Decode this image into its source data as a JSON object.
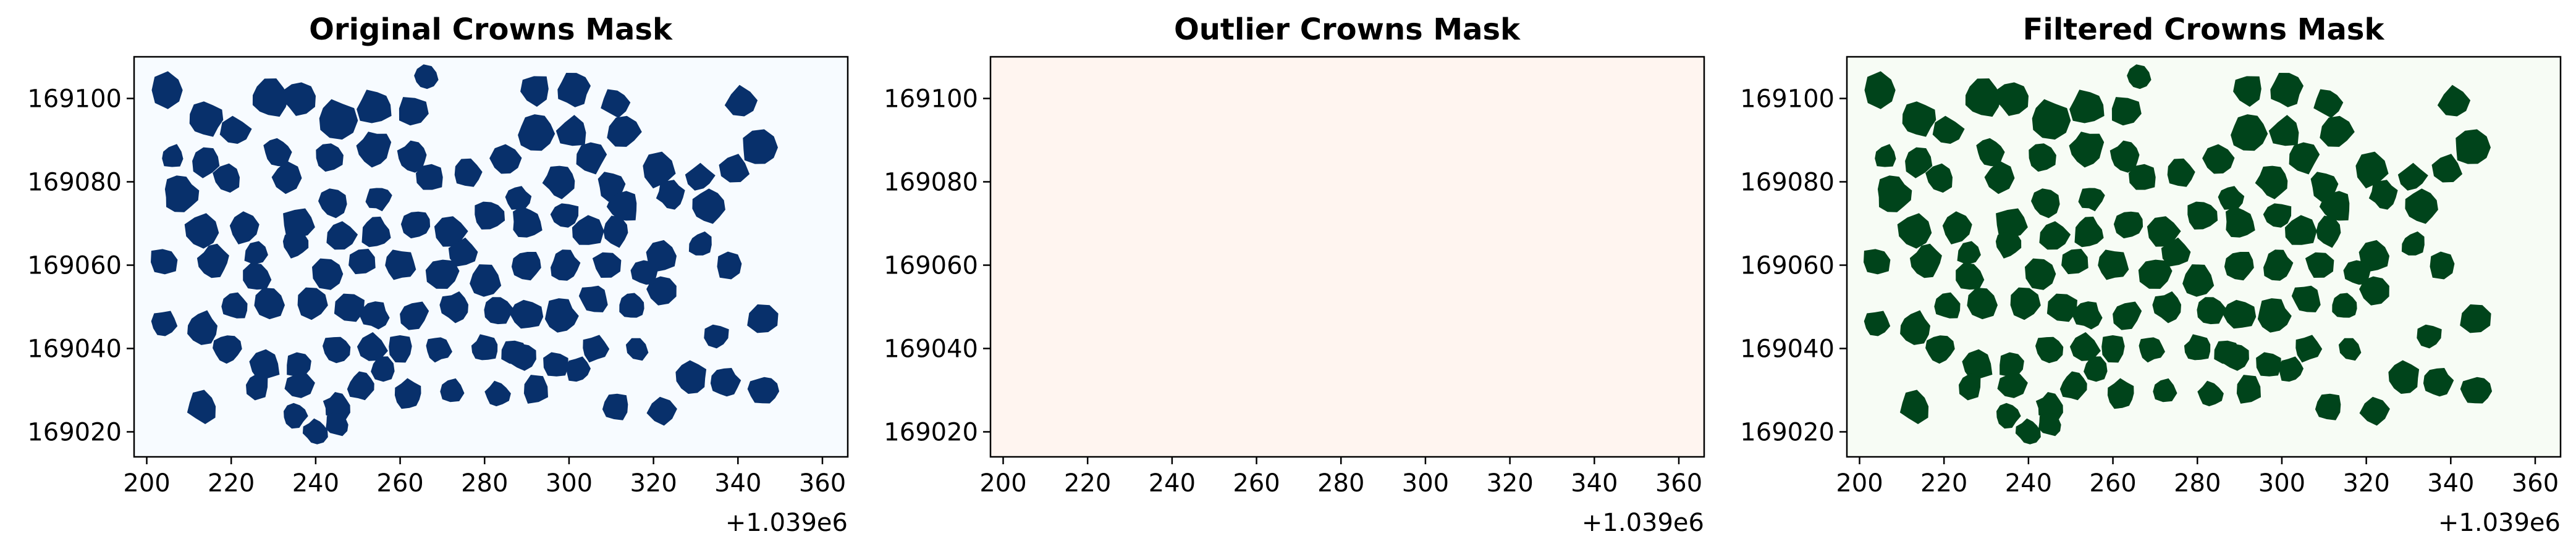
{
  "chart_data": [
    {
      "type": "map",
      "title": "Original Crowns Mask",
      "background": "#f7fbff",
      "crown_color": "#08306b",
      "xlim": [
        197,
        366
      ],
      "ylim": [
        169014,
        169110
      ],
      "x_offset_label": "+1.039e6",
      "xticks": [
        200,
        220,
        240,
        260,
        280,
        300,
        320,
        340,
        360
      ],
      "yticks": [
        169020,
        169040,
        169060,
        169080,
        169100
      ],
      "crown_count": 120
    },
    {
      "type": "map",
      "title": "Outlier Crowns Mask",
      "background": "#fff5f0",
      "crown_color": "#67000d",
      "xlim": [
        197,
        366
      ],
      "ylim": [
        169014,
        169110
      ],
      "x_offset_label": "+1.039e6",
      "xticks": [
        200,
        220,
        240,
        260,
        280,
        300,
        320,
        340,
        360
      ],
      "yticks": [
        169020,
        169040,
        169060,
        169080,
        169100
      ],
      "crown_count": 0
    },
    {
      "type": "map",
      "title": "Filtered Crowns Mask",
      "background": "#f7fcf5",
      "crown_color": "#00441b",
      "xlim": [
        197,
        366
      ],
      "ylim": [
        169014,
        169110
      ],
      "x_offset_label": "+1.039e6",
      "xticks": [
        200,
        220,
        240,
        260,
        280,
        300,
        320,
        340,
        360
      ],
      "yticks": [
        169020,
        169040,
        169060,
        169080,
        169100
      ],
      "crown_count": 120
    }
  ],
  "crowns": [
    [
      205,
      169102,
      4.5
    ],
    [
      214,
      169095,
      4.2
    ],
    [
      221,
      169092,
      3.6
    ],
    [
      229,
      169100,
      4.8
    ],
    [
      236,
      169100,
      4
    ],
    [
      245,
      169095,
      4.6
    ],
    [
      254,
      169098,
      4.4
    ],
    [
      263,
      169097,
      4
    ],
    [
      266,
      169105,
      3
    ],
    [
      292,
      169102,
      4
    ],
    [
      301,
      169102,
      4.1
    ],
    [
      311,
      169099,
      3.5
    ],
    [
      301,
      169092,
      3.8
    ],
    [
      305,
      169086,
      4
    ],
    [
      313,
      169092,
      3.9
    ],
    [
      206,
      169086,
      3
    ],
    [
      214,
      169085,
      3.8
    ],
    [
      208,
      169077,
      4.5
    ],
    [
      219,
      169081,
      3.5
    ],
    [
      233,
      169081,
      3.7
    ],
    [
      231,
      169087,
      3.5
    ],
    [
      243,
      169086,
      3.6
    ],
    [
      254,
      169088,
      4.2
    ],
    [
      263,
      169086,
      3.8
    ],
    [
      267,
      169081,
      3.5
    ],
    [
      276,
      169082,
      3.8
    ],
    [
      285,
      169085,
      3.7
    ],
    [
      292,
      169092,
      4.5
    ],
    [
      298,
      169080,
      4
    ],
    [
      310,
      169079,
      3.5
    ],
    [
      321,
      169083,
      4.4
    ],
    [
      331,
      169081,
      3.4
    ],
    [
      339,
      169083,
      3.9
    ],
    [
      345,
      169088,
      4.5
    ],
    [
      341,
      169099,
      4
    ],
    [
      324,
      169077,
      3.5
    ],
    [
      333,
      169074,
      4.3
    ],
    [
      313,
      169074,
      3.9
    ],
    [
      304,
      169068,
      4
    ],
    [
      311,
      169068,
      3.6
    ],
    [
      204,
      169061,
      3.6
    ],
    [
      213,
      169068,
      4.2
    ],
    [
      223,
      169069,
      3.8
    ],
    [
      226,
      169063,
      3.2
    ],
    [
      236,
      169070,
      4.2
    ],
    [
      246,
      169067,
      3.7
    ],
    [
      254,
      169068,
      3.8
    ],
    [
      264,
      169070,
      3.6
    ],
    [
      272,
      169068,
      4.1
    ],
    [
      281,
      169072,
      3.8
    ],
    [
      290,
      169070,
      4
    ],
    [
      299,
      169072,
      3.5
    ],
    [
      216,
      169061,
      3.8
    ],
    [
      226,
      169057,
      3.6
    ],
    [
      235,
      169065,
      3.2
    ],
    [
      243,
      169058,
      3.8
    ],
    [
      251,
      169061,
      3.4
    ],
    [
      260,
      169060,
      3.8
    ],
    [
      270,
      169058,
      3.8
    ],
    [
      280,
      169056,
      4
    ],
    [
      290,
      169060,
      3.6
    ],
    [
      299,
      169060,
      3.7
    ],
    [
      309,
      169060,
      3.5
    ],
    [
      322,
      169062,
      3.8
    ],
    [
      338,
      169060,
      3.7
    ],
    [
      204,
      169046,
      3.2
    ],
    [
      213,
      169045,
      4
    ],
    [
      221,
      169050,
      3.2
    ],
    [
      229,
      169051,
      4
    ],
    [
      239,
      169051,
      3.8
    ],
    [
      248,
      169050,
      3.6
    ],
    [
      254,
      169048,
      3.4
    ],
    [
      263,
      169048,
      3.6
    ],
    [
      273,
      169050,
      3.6
    ],
    [
      283,
      169049,
      3.8
    ],
    [
      290,
      169048,
      3.8
    ],
    [
      298,
      169048,
      4
    ],
    [
      306,
      169052,
      3.6
    ],
    [
      315,
      169050,
      3.2
    ],
    [
      322,
      169054,
      3.4
    ],
    [
      219,
      169040,
      3.4
    ],
    [
      228,
      169036,
      3.8
    ],
    [
      236,
      169036,
      3.4
    ],
    [
      245,
      169040,
      3.4
    ],
    [
      253,
      169040,
      3.8
    ],
    [
      260,
      169040,
      3.3
    ],
    [
      269,
      169040,
      3.2
    ],
    [
      280,
      169040,
      3.3
    ],
    [
      289,
      169038,
      3.5
    ],
    [
      297,
      169036,
      3.3
    ],
    [
      306,
      169040,
      3.3
    ],
    [
      213,
      169026,
      3.8
    ],
    [
      226,
      169031,
      3.2
    ],
    [
      236,
      169031,
      3.6
    ],
    [
      245,
      169026,
      3.4
    ],
    [
      251,
      169031,
      3.5
    ],
    [
      262,
      169029,
      3.6
    ],
    [
      272,
      169030,
      3
    ],
    [
      283,
      169029,
      3.2
    ],
    [
      292,
      169030,
      3.5
    ],
    [
      302,
      169035,
      3.2
    ],
    [
      311,
      169026,
      3.6
    ],
    [
      322,
      169025,
      3.6
    ],
    [
      329,
      169033,
      3.8
    ],
    [
      337,
      169032,
      3.6
    ],
    [
      346,
      169030,
      3.5
    ],
    [
      346,
      169047,
      3.8
    ],
    [
      335,
      169043,
      3.2
    ],
    [
      316,
      169040,
      3
    ],
    [
      287,
      169039,
      3.3
    ],
    [
      240,
      169020,
      3
    ],
    [
      245,
      169022,
      3
    ],
    [
      235,
      169024,
      3
    ],
    [
      256,
      169035,
      3
    ],
    [
      275,
      169063,
      3.4
    ],
    [
      288,
      169076,
      3
    ],
    [
      318,
      169058,
      3.2
    ],
    [
      331,
      169065,
      3
    ],
    [
      255,
      169076,
      3
    ],
    [
      244,
      169075,
      3.5
    ]
  ]
}
